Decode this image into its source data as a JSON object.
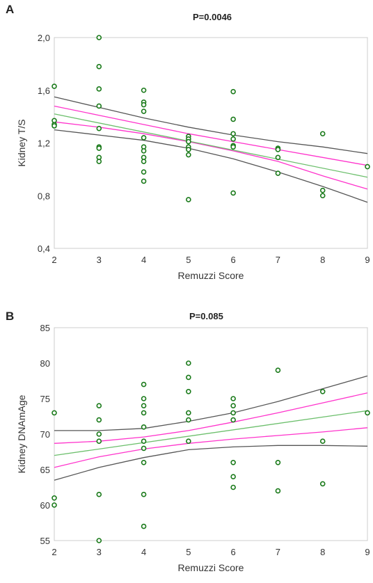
{
  "colors": {
    "points": "#1a7a1a",
    "fit": "#6cbf6c",
    "ci": "#ff33cc",
    "pi": "#555555",
    "axis": "#cccccc",
    "background": "#ffffff"
  },
  "chart_data": [
    {
      "panel": "A",
      "type": "scatter",
      "title": "P=0.0046",
      "xlabel": "Remuzzi Score",
      "ylabel": "Kidney T/S",
      "xlim": [
        2,
        9
      ],
      "ylim": [
        0.4,
        2.0
      ],
      "xticks": [
        "2",
        "3",
        "4",
        "5",
        "6",
        "7",
        "8",
        "9"
      ],
      "yticks": [
        "0,4",
        "0,8",
        "1,2",
        "1,6",
        "2,0"
      ],
      "points": [
        [
          2,
          1.63
        ],
        [
          2,
          1.37
        ],
        [
          2,
          1.34
        ],
        [
          2,
          1.33
        ],
        [
          3,
          2.0
        ],
        [
          3,
          1.78
        ],
        [
          3,
          1.61
        ],
        [
          3,
          1.48
        ],
        [
          3,
          1.31
        ],
        [
          3,
          1.17
        ],
        [
          3,
          1.16
        ],
        [
          3,
          1.09
        ],
        [
          3,
          1.06
        ],
        [
          4,
          1.6
        ],
        [
          4,
          1.51
        ],
        [
          4,
          1.49
        ],
        [
          4,
          1.44
        ],
        [
          4,
          1.24
        ],
        [
          4,
          1.17
        ],
        [
          4,
          1.14
        ],
        [
          4,
          1.09
        ],
        [
          4,
          1.06
        ],
        [
          4,
          0.98
        ],
        [
          4,
          0.91
        ],
        [
          5,
          1.25
        ],
        [
          5,
          1.23
        ],
        [
          5,
          1.21
        ],
        [
          5,
          1.17
        ],
        [
          5,
          1.15
        ],
        [
          5,
          1.11
        ],
        [
          5,
          0.77
        ],
        [
          6,
          1.59
        ],
        [
          6,
          1.38
        ],
        [
          6,
          1.27
        ],
        [
          6,
          1.23
        ],
        [
          6,
          1.18
        ],
        [
          6,
          1.17
        ],
        [
          6,
          0.82
        ],
        [
          7,
          1.16
        ],
        [
          7,
          1.15
        ],
        [
          7,
          1.09
        ],
        [
          7,
          0.97
        ],
        [
          8,
          1.27
        ],
        [
          8,
          0.84
        ],
        [
          8,
          0.8
        ],
        [
          9,
          1.02
        ]
      ],
      "fit_line": [
        [
          2,
          1.42
        ],
        [
          9,
          0.94
        ]
      ],
      "confidence_band": {
        "upper": [
          [
            2,
            1.48
          ],
          [
            3,
            1.41
          ],
          [
            4,
            1.34
          ],
          [
            5,
            1.27
          ],
          [
            6,
            1.21
          ],
          [
            7,
            1.15
          ],
          [
            8,
            1.09
          ],
          [
            9,
            1.03
          ]
        ],
        "lower": [
          [
            2,
            1.36
          ],
          [
            3,
            1.32
          ],
          [
            4,
            1.27
          ],
          [
            5,
            1.21
          ],
          [
            6,
            1.14
          ],
          [
            7,
            1.06
          ],
          [
            8,
            0.95
          ],
          [
            9,
            0.85
          ]
        ]
      },
      "prediction_band": {
        "upper": [
          [
            2,
            1.55
          ],
          [
            3,
            1.47
          ],
          [
            4,
            1.39
          ],
          [
            5,
            1.32
          ],
          [
            6,
            1.26
          ],
          [
            7,
            1.21
          ],
          [
            8,
            1.17
          ],
          [
            9,
            1.12
          ]
        ],
        "lower": [
          [
            2,
            1.3
          ],
          [
            3,
            1.26
          ],
          [
            4,
            1.22
          ],
          [
            5,
            1.16
          ],
          [
            6,
            1.08
          ],
          [
            7,
            0.98
          ],
          [
            8,
            0.87
          ],
          [
            9,
            0.75
          ]
        ]
      }
    },
    {
      "panel": "B",
      "type": "scatter",
      "title": "P=0.085",
      "xlabel": "Remuzzi Score",
      "ylabel": "Kidney   DNAmAge",
      "xlim": [
        2,
        9
      ],
      "ylim": [
        55,
        85
      ],
      "xticks": [
        "2",
        "3",
        "4",
        "5",
        "6",
        "7",
        "8",
        "9"
      ],
      "yticks": [
        "55",
        "60",
        "65",
        "70",
        "75",
        "80",
        "85"
      ],
      "points": [
        [
          2,
          73
        ],
        [
          2,
          61
        ],
        [
          2,
          60
        ],
        [
          3,
          74
        ],
        [
          3,
          72
        ],
        [
          3,
          70
        ],
        [
          3,
          69
        ],
        [
          3,
          61.5
        ],
        [
          3,
          55
        ],
        [
          4,
          77
        ],
        [
          4,
          75
        ],
        [
          4,
          74
        ],
        [
          4,
          73
        ],
        [
          4,
          71
        ],
        [
          4,
          69
        ],
        [
          4,
          68
        ],
        [
          4,
          66
        ],
        [
          4,
          61.5
        ],
        [
          4,
          57
        ],
        [
          5,
          80
        ],
        [
          5,
          78
        ],
        [
          5,
          76
        ],
        [
          5,
          73
        ],
        [
          5,
          72
        ],
        [
          5,
          69
        ],
        [
          6,
          75
        ],
        [
          6,
          74
        ],
        [
          6,
          73
        ],
        [
          6,
          72
        ],
        [
          6,
          66
        ],
        [
          6,
          64
        ],
        [
          6,
          62.5
        ],
        [
          7,
          79
        ],
        [
          7,
          66
        ],
        [
          7,
          62
        ],
        [
          8,
          76
        ],
        [
          8,
          69
        ],
        [
          8,
          63
        ],
        [
          9,
          73
        ]
      ],
      "fit_line": [
        [
          2,
          67
        ],
        [
          9,
          73.3
        ]
      ],
      "confidence_band": {
        "upper": [
          [
            2,
            68.7
          ],
          [
            3,
            69.0
          ],
          [
            4,
            69.6
          ],
          [
            5,
            70.5
          ],
          [
            6,
            71.7
          ],
          [
            7,
            73.0
          ],
          [
            8,
            74.4
          ],
          [
            9,
            75.8
          ]
        ],
        "lower": [
          [
            2,
            65.3
          ],
          [
            3,
            66.8
          ],
          [
            4,
            67.9
          ],
          [
            5,
            68.7
          ],
          [
            6,
            69.3
          ],
          [
            7,
            69.8
          ],
          [
            8,
            70.3
          ],
          [
            9,
            70.9
          ]
        ]
      },
      "prediction_band": {
        "upper": [
          [
            2,
            70.5
          ],
          [
            3,
            70.5
          ],
          [
            4,
            70.8
          ],
          [
            5,
            71.8
          ],
          [
            6,
            73.0
          ],
          [
            7,
            74.6
          ],
          [
            8,
            76.4
          ],
          [
            9,
            78.2
          ]
        ],
        "lower": [
          [
            2,
            63.5
          ],
          [
            3,
            65.3
          ],
          [
            4,
            66.7
          ],
          [
            5,
            67.8
          ],
          [
            6,
            68.2
          ],
          [
            7,
            68.4
          ],
          [
            8,
            68.4
          ],
          [
            9,
            68.3
          ]
        ]
      }
    }
  ]
}
